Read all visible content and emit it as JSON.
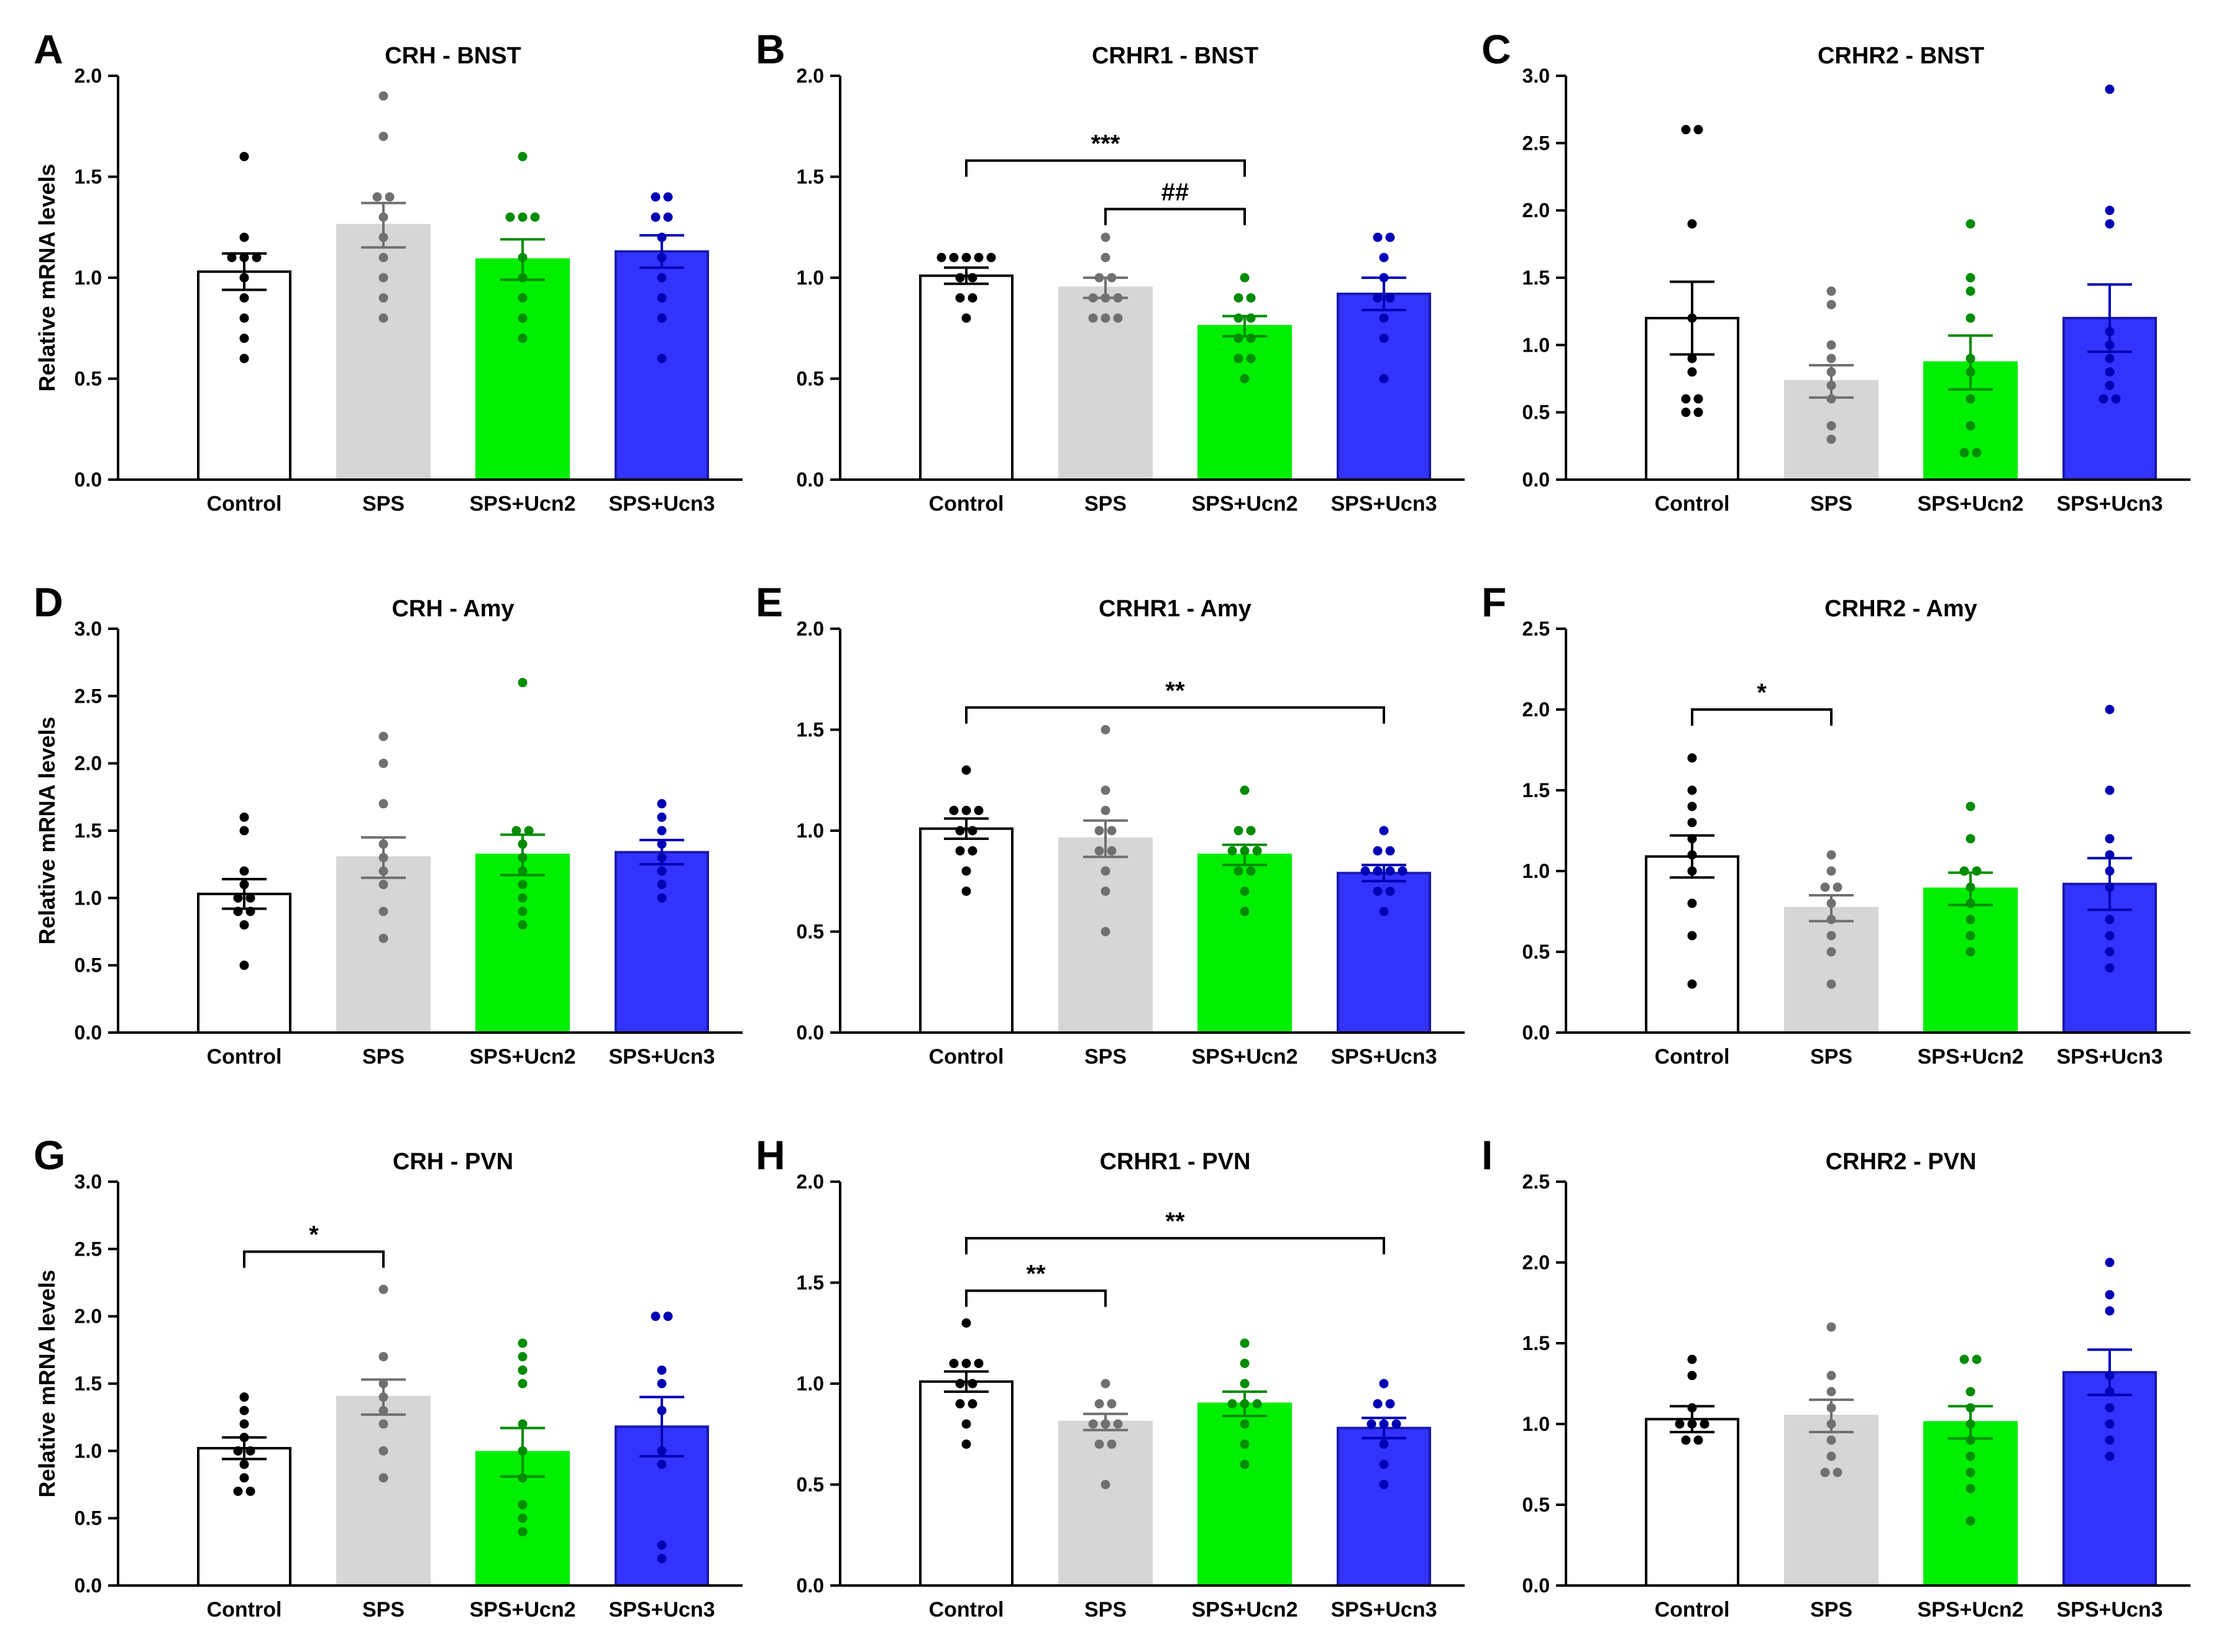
{
  "figure": {
    "ylabel": "Relative mRNA levels",
    "categories": [
      "Control",
      "SPS",
      "SPS+Ucn2",
      "SPS+Ucn3"
    ],
    "group_colors": {
      "Control": {
        "fill": "#ffffff",
        "stroke": "#000000",
        "dot": "#000000"
      },
      "SPS": {
        "fill": "#d6d6d6",
        "stroke": "#d6d6d6",
        "dot": "#707070"
      },
      "SPS+Ucn2": {
        "fill": "#00ee00",
        "stroke": "#00ee00",
        "dot": "#008c00"
      },
      "SPS+Ucn3": {
        "fill": "#3333ff",
        "stroke": "#1a1ab0",
        "dot": "#0000b4"
      }
    }
  },
  "chart_data": [
    {
      "type": "bar",
      "panel": "A",
      "title": "CRH - BNST",
      "ylim": [
        0,
        2.0
      ],
      "yticks": [
        "0.0",
        "0.5",
        "1.0",
        "1.5",
        "2.0"
      ],
      "ylabel": "Relative mRNA levels",
      "categories": [
        "Control",
        "SPS",
        "SPS+Ucn2",
        "SPS+Ucn3"
      ],
      "values": [
        1.03,
        1.26,
        1.09,
        1.13
      ],
      "sem": [
        0.09,
        0.11,
        0.1,
        0.08
      ],
      "points": [
        [
          1.6,
          1.2,
          1.1,
          1.1,
          1.1,
          1.0,
          0.9,
          0.8,
          0.7,
          0.6
        ],
        [
          1.9,
          1.7,
          1.4,
          1.4,
          1.3,
          1.2,
          1.1,
          1.0,
          0.9,
          0.8
        ],
        [
          1.6,
          1.3,
          1.3,
          1.3,
          1.1,
          1.0,
          0.9,
          0.8,
          0.7
        ],
        [
          1.4,
          1.4,
          1.3,
          1.3,
          1.2,
          1.1,
          1.0,
          0.9,
          0.8,
          0.6
        ]
      ],
      "annotations": []
    },
    {
      "type": "bar",
      "panel": "B",
      "title": "CRHR1 - BNST",
      "ylim": [
        0,
        2.0
      ],
      "yticks": [
        "0.0",
        "0.5",
        "1.0",
        "1.5",
        "2.0"
      ],
      "ylabel": "",
      "categories": [
        "Control",
        "SPS",
        "SPS+Ucn2",
        "SPS+Ucn3"
      ],
      "values": [
        1.01,
        0.95,
        0.76,
        0.92
      ],
      "sem": [
        0.04,
        0.05,
        0.05,
        0.08
      ],
      "points": [
        [
          1.1,
          1.1,
          1.1,
          1.1,
          1.1,
          1.0,
          1.0,
          0.9,
          0.9,
          0.8
        ],
        [
          1.2,
          1.1,
          1.0,
          1.0,
          0.9,
          0.9,
          0.9,
          0.8,
          0.8,
          0.8
        ],
        [
          1.0,
          0.9,
          0.9,
          0.8,
          0.8,
          0.7,
          0.7,
          0.6,
          0.6,
          0.5
        ],
        [
          1.2,
          1.2,
          1.1,
          1.0,
          0.9,
          0.9,
          0.8,
          0.7,
          0.5
        ]
      ],
      "annotations": [
        {
          "from": 0,
          "to": 2,
          "y": 1.58,
          "label": "***"
        },
        {
          "from": 1,
          "to": 2,
          "y": 1.34,
          "label": "##"
        }
      ]
    },
    {
      "type": "bar",
      "panel": "C",
      "title": "CRHR2 - BNST",
      "ylim": [
        0,
        3.0
      ],
      "yticks": [
        "0.0",
        "0.5",
        "1.0",
        "1.5",
        "2.0",
        "2.5",
        "3.0"
      ],
      "ylabel": "",
      "categories": [
        "Control",
        "SPS",
        "SPS+Ucn2",
        "SPS+Ucn3"
      ],
      "values": [
        1.2,
        0.73,
        0.87,
        1.2
      ],
      "sem": [
        0.27,
        0.12,
        0.2,
        0.25
      ],
      "points": [
        [
          2.6,
          2.6,
          1.9,
          1.2,
          0.9,
          0.8,
          0.6,
          0.6,
          0.5,
          0.5
        ],
        [
          1.4,
          1.3,
          1.0,
          0.9,
          0.8,
          0.7,
          0.6,
          0.4,
          0.3
        ],
        [
          1.9,
          1.5,
          1.4,
          1.2,
          0.9,
          0.8,
          0.6,
          0.4,
          0.2,
          0.2
        ],
        [
          2.9,
          2.0,
          1.9,
          1.1,
          1.0,
          0.9,
          0.8,
          0.7,
          0.6,
          0.6
        ]
      ],
      "annotations": []
    },
    {
      "type": "bar",
      "panel": "D",
      "title": "CRH - Amy",
      "ylim": [
        0,
        3.0
      ],
      "yticks": [
        "0.0",
        "0.5",
        "1.0",
        "1.5",
        "2.0",
        "2.5",
        "3.0"
      ],
      "ylabel": "Relative mRNA levels",
      "categories": [
        "Control",
        "SPS",
        "SPS+Ucn2",
        "SPS+Ucn3"
      ],
      "values": [
        1.03,
        1.3,
        1.32,
        1.34
      ],
      "sem": [
        0.11,
        0.15,
        0.15,
        0.09
      ],
      "points": [
        [
          1.6,
          1.5,
          1.2,
          1.1,
          1.0,
          1.0,
          0.9,
          0.9,
          0.8,
          0.5
        ],
        [
          2.2,
          2.0,
          1.7,
          1.4,
          1.3,
          1.2,
          1.1,
          0.9,
          0.7
        ],
        [
          2.6,
          1.5,
          1.5,
          1.4,
          1.3,
          1.2,
          1.1,
          1.0,
          0.9,
          0.8
        ],
        [
          1.7,
          1.6,
          1.5,
          1.4,
          1.3,
          1.2,
          1.1,
          1.0
        ]
      ],
      "annotations": []
    },
    {
      "type": "bar",
      "panel": "E",
      "title": "CRHR1 - Amy",
      "ylim": [
        0,
        2.0
      ],
      "yticks": [
        "0.0",
        "0.5",
        "1.0",
        "1.5",
        "2.0"
      ],
      "ylabel": "",
      "categories": [
        "Control",
        "SPS",
        "SPS+Ucn2",
        "SPS+Ucn3"
      ],
      "values": [
        1.01,
        0.96,
        0.88,
        0.79
      ],
      "sem": [
        0.05,
        0.09,
        0.05,
        0.04
      ],
      "points": [
        [
          1.3,
          1.1,
          1.1,
          1.1,
          1.0,
          1.0,
          0.9,
          0.9,
          0.8,
          0.7
        ],
        [
          1.5,
          1.2,
          1.1,
          1.0,
          1.0,
          0.9,
          0.9,
          0.8,
          0.7,
          0.5
        ],
        [
          1.2,
          1.0,
          1.0,
          0.9,
          0.9,
          0.9,
          0.8,
          0.8,
          0.7,
          0.6
        ],
        [
          1.0,
          0.9,
          0.9,
          0.8,
          0.8,
          0.8,
          0.8,
          0.7,
          0.7,
          0.6
        ]
      ],
      "annotations": [
        {
          "from": 0,
          "to": 3,
          "y": 1.61,
          "label": "**"
        }
      ]
    },
    {
      "type": "bar",
      "panel": "F",
      "title": "CRHR2 - Amy",
      "ylim": [
        0,
        2.5
      ],
      "yticks": [
        "0.0",
        "0.5",
        "1.0",
        "1.5",
        "2.0",
        "2.5"
      ],
      "ylabel": "",
      "categories": [
        "Control",
        "SPS",
        "SPS+Ucn2",
        "SPS+Ucn3"
      ],
      "values": [
        1.09,
        0.77,
        0.89,
        0.92
      ],
      "sem": [
        0.13,
        0.08,
        0.1,
        0.16
      ],
      "points": [
        [
          1.7,
          1.5,
          1.4,
          1.3,
          1.2,
          1.1,
          1.0,
          0.8,
          0.6,
          0.3
        ],
        [
          1.1,
          1.0,
          0.9,
          0.9,
          0.8,
          0.7,
          0.6,
          0.5,
          0.3
        ],
        [
          1.4,
          1.2,
          1.0,
          1.0,
          0.9,
          0.8,
          0.7,
          0.6,
          0.5
        ],
        [
          2.0,
          1.5,
          1.2,
          1.1,
          1.0,
          0.9,
          0.7,
          0.6,
          0.5,
          0.4
        ]
      ],
      "annotations": [
        {
          "from": 0,
          "to": 1,
          "y": 2.0,
          "label": "*"
        }
      ]
    },
    {
      "type": "bar",
      "panel": "G",
      "title": "CRH - PVN",
      "ylim": [
        0,
        3.0
      ],
      "yticks": [
        "0.0",
        "0.5",
        "1.0",
        "1.5",
        "2.0",
        "2.5",
        "3.0"
      ],
      "ylabel": "Relative mRNA levels",
      "categories": [
        "Control",
        "SPS",
        "SPS+Ucn2",
        "SPS+Ucn3"
      ],
      "values": [
        1.02,
        1.4,
        0.99,
        1.18
      ],
      "sem": [
        0.08,
        0.13,
        0.18,
        0.22
      ],
      "points": [
        [
          1.4,
          1.3,
          1.2,
          1.1,
          1.0,
          1.0,
          0.9,
          0.8,
          0.7,
          0.7
        ],
        [
          2.2,
          1.7,
          1.5,
          1.4,
          1.3,
          1.2,
          1.0,
          0.8
        ],
        [
          1.8,
          1.7,
          1.6,
          1.5,
          1.2,
          1.0,
          0.8,
          0.6,
          0.5,
          0.4
        ],
        [
          2.0,
          2.0,
          1.6,
          1.5,
          1.3,
          1.0,
          0.9,
          0.3,
          0.2
        ]
      ],
      "annotations": [
        {
          "from": 0,
          "to": 1,
          "y": 2.48,
          "label": "*"
        }
      ]
    },
    {
      "type": "bar",
      "panel": "H",
      "title": "CRHR1 - PVN",
      "ylim": [
        0,
        2.0
      ],
      "yticks": [
        "0.0",
        "0.5",
        "1.0",
        "1.5",
        "2.0"
      ],
      "ylabel": "",
      "categories": [
        "Control",
        "SPS",
        "SPS+Ucn2",
        "SPS+Ucn3"
      ],
      "values": [
        1.01,
        0.81,
        0.9,
        0.78
      ],
      "sem": [
        0.05,
        0.04,
        0.06,
        0.05
      ],
      "points": [
        [
          1.3,
          1.1,
          1.1,
          1.1,
          1.0,
          1.0,
          0.9,
          0.9,
          0.8,
          0.7
        ],
        [
          1.0,
          0.9,
          0.9,
          0.8,
          0.8,
          0.8,
          0.7,
          0.7,
          0.5
        ],
        [
          1.2,
          1.1,
          1.0,
          0.9,
          0.9,
          0.9,
          0.8,
          0.7,
          0.6
        ],
        [
          1.0,
          0.9,
          0.9,
          0.8,
          0.8,
          0.8,
          0.7,
          0.6,
          0.5
        ]
      ],
      "annotations": [
        {
          "from": 0,
          "to": 1,
          "y": 1.46,
          "label": "**"
        },
        {
          "from": 0,
          "to": 3,
          "y": 1.72,
          "label": "**"
        }
      ]
    },
    {
      "type": "bar",
      "panel": "I",
      "title": "CRHR2 - PVN",
      "ylim": [
        0,
        2.5
      ],
      "yticks": [
        "0.0",
        "0.5",
        "1.0",
        "1.5",
        "2.0",
        "2.5"
      ],
      "ylabel": "",
      "categories": [
        "Control",
        "SPS",
        "SPS+Ucn2",
        "SPS+Ucn3"
      ],
      "values": [
        1.03,
        1.05,
        1.01,
        1.32
      ],
      "sem": [
        0.08,
        0.1,
        0.1,
        0.14
      ],
      "points": [
        [
          1.4,
          1.3,
          1.1,
          1.0,
          1.0,
          1.0,
          0.9,
          0.9
        ],
        [
          1.6,
          1.3,
          1.2,
          1.1,
          1.0,
          0.9,
          0.8,
          0.7,
          0.7
        ],
        [
          1.4,
          1.4,
          1.2,
          1.1,
          1.0,
          0.9,
          0.8,
          0.7,
          0.6,
          0.4
        ],
        [
          2.0,
          1.8,
          1.7,
          1.3,
          1.2,
          1.1,
          1.0,
          0.9,
          0.8
        ]
      ],
      "annotations": []
    }
  ]
}
